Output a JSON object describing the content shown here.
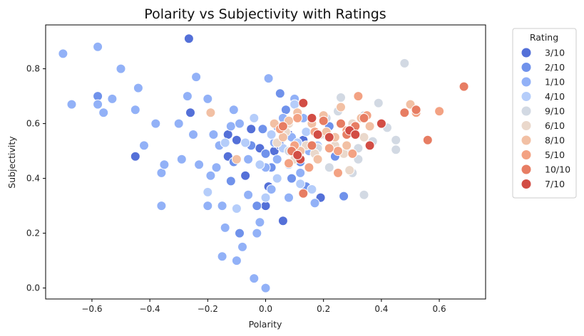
{
  "chart_data": {
    "type": "scatter",
    "title": "Polarity vs Subjectivity with Ratings",
    "xlabel": "Polarity",
    "ylabel": "Subjectivity",
    "xlim": [
      -0.76,
      0.76
    ],
    "ylim": [
      -0.04,
      0.96
    ],
    "xticks": [
      -0.6,
      -0.4,
      -0.2,
      0.0,
      0.2,
      0.4,
      0.6
    ],
    "xtick_labels": [
      "−0.6",
      "−0.4",
      "−0.2",
      "0.0",
      "0.2",
      "0.4",
      "0.6"
    ],
    "yticks": [
      0.0,
      0.2,
      0.4,
      0.6,
      0.8
    ],
    "ytick_labels": [
      "0.0",
      "0.2",
      "0.4",
      "0.6",
      "0.8"
    ],
    "grid": false,
    "legend": {
      "title": "Rating",
      "placement": "outside-right",
      "entries": [
        {
          "label": "3/10",
          "color": "#5470d8"
        },
        {
          "label": "2/10",
          "color": "#7092eb"
        },
        {
          "label": "1/10",
          "color": "#92b1f7"
        },
        {
          "label": "4/10",
          "color": "#b5cdfa"
        },
        {
          "label": "9/10",
          "color": "#d2d9e3"
        },
        {
          "label": "6/10",
          "color": "#ead8cb"
        },
        {
          "label": "8/10",
          "color": "#f2c0a4"
        },
        {
          "label": "5/10",
          "color": "#f3a283"
        },
        {
          "label": "10/10",
          "color": "#e77d63"
        },
        {
          "label": "7/10",
          "color": "#d24d45"
        }
      ]
    },
    "series": [
      {
        "name": "3/10",
        "points": [
          [
            -0.265,
            0.91
          ],
          [
            -0.26,
            0.64
          ],
          [
            -0.45,
            0.48
          ],
          [
            -0.13,
            0.56
          ],
          [
            -0.1,
            0.54
          ],
          [
            -0.07,
            0.41
          ],
          [
            -0.05,
            0.58
          ],
          [
            -0.02,
            0.51
          ],
          [
            0.0,
            0.3
          ],
          [
            0.03,
            0.5
          ],
          [
            0.06,
            0.245
          ],
          [
            0.08,
            0.56
          ],
          [
            0.1,
            0.49
          ],
          [
            0.13,
            0.54
          ],
          [
            0.19,
            0.33
          ],
          [
            -0.13,
            0.48
          ],
          [
            0.01,
            0.37
          ],
          [
            0.05,
            0.52
          ]
        ]
      },
      {
        "name": "2/10",
        "points": [
          [
            -0.58,
            0.7
          ],
          [
            -0.11,
            0.46
          ],
          [
            -0.09,
            0.2
          ],
          [
            -0.05,
            0.52
          ],
          [
            -0.03,
            0.3
          ],
          [
            0.0,
            0.49
          ],
          [
            0.02,
            0.44
          ],
          [
            0.04,
            0.59
          ],
          [
            0.05,
            0.71
          ],
          [
            0.07,
            0.65
          ],
          [
            0.09,
            0.4
          ],
          [
            0.11,
            0.5
          ],
          [
            0.14,
            0.37
          ],
          [
            0.22,
            0.59
          ],
          [
            0.24,
            0.48
          ],
          [
            0.27,
            0.335
          ],
          [
            -0.17,
            0.44
          ],
          [
            -0.01,
            0.58
          ],
          [
            0.12,
            0.46
          ],
          [
            -0.12,
            0.39
          ]
        ]
      },
      {
        "name": "1/10",
        "points": [
          [
            -0.7,
            0.855
          ],
          [
            -0.67,
            0.67
          ],
          [
            -0.58,
            0.88
          ],
          [
            -0.58,
            0.67
          ],
          [
            -0.56,
            0.64
          ],
          [
            -0.53,
            0.69
          ],
          [
            -0.5,
            0.8
          ],
          [
            -0.45,
            0.65
          ],
          [
            -0.44,
            0.73
          ],
          [
            -0.42,
            0.52
          ],
          [
            -0.38,
            0.6
          ],
          [
            -0.36,
            0.42
          ],
          [
            -0.35,
            0.45
          ],
          [
            -0.36,
            0.3
          ],
          [
            -0.3,
            0.6
          ],
          [
            -0.29,
            0.47
          ],
          [
            -0.27,
            0.7
          ],
          [
            -0.25,
            0.56
          ],
          [
            -0.24,
            0.77
          ],
          [
            -0.23,
            0.45
          ],
          [
            -0.2,
            0.69
          ],
          [
            -0.2,
            0.3
          ],
          [
            -0.19,
            0.41
          ],
          [
            -0.17,
            0.44
          ],
          [
            -0.16,
            0.52
          ],
          [
            -0.15,
            0.3
          ],
          [
            -0.14,
            0.22
          ],
          [
            -0.12,
            0.59
          ],
          [
            -0.1,
            0.1
          ],
          [
            -0.08,
            0.15
          ],
          [
            -0.06,
            0.34
          ],
          [
            -0.04,
            0.035
          ],
          [
            -0.03,
            0.2
          ],
          [
            -0.02,
            0.24
          ],
          [
            0.0,
            0.0
          ],
          [
            0.01,
            0.765
          ],
          [
            0.02,
            0.36
          ],
          [
            0.04,
            0.47
          ],
          [
            0.06,
            0.62
          ],
          [
            0.08,
            0.33
          ],
          [
            0.1,
            0.69
          ],
          [
            0.12,
            0.42
          ],
          [
            0.15,
            0.5
          ],
          [
            0.17,
            0.31
          ],
          [
            -0.15,
            0.115
          ],
          [
            -0.2,
            0.35
          ],
          [
            -0.11,
            0.65
          ],
          [
            -0.09,
            0.6
          ],
          [
            0.0,
            0.44
          ],
          [
            0.09,
            0.55
          ],
          [
            -0.18,
            0.56
          ],
          [
            -0.06,
            0.47
          ],
          [
            0.03,
            0.53
          ],
          [
            0.13,
            0.62
          ]
        ]
      },
      {
        "name": "4/10",
        "points": [
          [
            -0.2,
            0.35
          ],
          [
            -0.1,
            0.29
          ],
          [
            -0.04,
            0.62
          ],
          [
            -0.02,
            0.45
          ],
          [
            0.02,
            0.56
          ],
          [
            0.06,
            0.51
          ],
          [
            0.1,
            0.67
          ],
          [
            0.12,
            0.38
          ],
          [
            0.16,
            0.36
          ],
          [
            0.18,
            0.52
          ],
          [
            0.2,
            0.56
          ],
          [
            -0.14,
            0.53
          ],
          [
            0.04,
            0.4
          ],
          [
            0.08,
            0.45
          ],
          [
            -0.07,
            0.53
          ],
          [
            0.14,
            0.57
          ],
          [
            0.0,
            0.33
          ],
          [
            0.11,
            0.53
          ]
        ]
      },
      {
        "name": "9/10",
        "points": [
          [
            0.48,
            0.82
          ],
          [
            0.39,
            0.675
          ],
          [
            0.42,
            0.585
          ],
          [
            0.45,
            0.54
          ],
          [
            0.45,
            0.505
          ],
          [
            0.32,
            0.51
          ],
          [
            0.34,
            0.34
          ],
          [
            0.3,
            0.42
          ],
          [
            0.25,
            0.645
          ],
          [
            0.26,
            0.695
          ],
          [
            0.37,
            0.535
          ],
          [
            0.32,
            0.47
          ],
          [
            0.22,
            0.44
          ],
          [
            0.28,
            0.5
          ],
          [
            0.34,
            0.63
          ],
          [
            0.18,
            0.51
          ],
          [
            0.08,
            0.5
          ],
          [
            0.21,
            0.62
          ]
        ]
      },
      {
        "name": "6/10",
        "points": [
          [
            0.04,
            0.53
          ],
          [
            0.08,
            0.6
          ],
          [
            0.14,
            0.52
          ],
          [
            0.17,
            0.49
          ],
          [
            0.19,
            0.56
          ],
          [
            0.24,
            0.52
          ],
          [
            0.27,
            0.49
          ],
          [
            0.3,
            0.6
          ],
          [
            0.34,
            0.55
          ],
          [
            0.1,
            0.47
          ],
          [
            0.22,
            0.55
          ],
          [
            0.07,
            0.57
          ],
          [
            0.29,
            0.43
          ]
        ]
      },
      {
        "name": "8/10",
        "points": [
          [
            -0.19,
            0.64
          ],
          [
            -0.1,
            0.47
          ],
          [
            0.03,
            0.6
          ],
          [
            0.06,
            0.55
          ],
          [
            0.11,
            0.64
          ],
          [
            0.16,
            0.6
          ],
          [
            0.2,
            0.63
          ],
          [
            0.24,
            0.55
          ],
          [
            0.26,
            0.66
          ],
          [
            0.3,
            0.58
          ],
          [
            0.33,
            0.62
          ],
          [
            0.36,
            0.59
          ],
          [
            0.18,
            0.47
          ],
          [
            0.12,
            0.5
          ],
          [
            0.28,
            0.52
          ],
          [
            0.5,
            0.67
          ],
          [
            0.21,
            0.57
          ],
          [
            0.08,
            0.61
          ]
        ]
      },
      {
        "name": "5/10",
        "points": [
          [
            0.6,
            0.645
          ],
          [
            0.52,
            0.64
          ],
          [
            0.4,
            0.6
          ],
          [
            0.35,
            0.63
          ],
          [
            0.32,
            0.7
          ],
          [
            0.28,
            0.575
          ],
          [
            0.25,
            0.5
          ],
          [
            0.25,
            0.42
          ],
          [
            0.22,
            0.51
          ],
          [
            0.15,
            0.44
          ],
          [
            0.11,
            0.62
          ],
          [
            0.08,
            0.455
          ],
          [
            0.05,
            0.58
          ],
          [
            0.1,
            0.52
          ],
          [
            0.17,
            0.57
          ],
          [
            0.3,
            0.49
          ]
        ]
      },
      {
        "name": "10/10",
        "points": [
          [
            0.685,
            0.735
          ],
          [
            0.56,
            0.54
          ],
          [
            0.48,
            0.64
          ],
          [
            0.52,
            0.65
          ],
          [
            0.4,
            0.6
          ],
          [
            0.34,
            0.62
          ],
          [
            0.31,
            0.59
          ],
          [
            0.28,
            0.56
          ],
          [
            0.26,
            0.6
          ],
          [
            0.2,
            0.61
          ],
          [
            0.16,
            0.52
          ],
          [
            0.13,
            0.345
          ],
          [
            0.13,
            0.675
          ],
          [
            0.09,
            0.5
          ],
          [
            0.06,
            0.59
          ]
        ]
      },
      {
        "name": "7/10",
        "points": [
          [
            0.13,
            0.675
          ],
          [
            0.16,
            0.62
          ],
          [
            0.12,
            0.47
          ],
          [
            0.11,
            0.485
          ],
          [
            0.22,
            0.55
          ],
          [
            0.29,
            0.575
          ],
          [
            0.4,
            0.6
          ],
          [
            0.36,
            0.52
          ],
          [
            0.31,
            0.56
          ],
          [
            0.18,
            0.56
          ]
        ]
      }
    ]
  }
}
